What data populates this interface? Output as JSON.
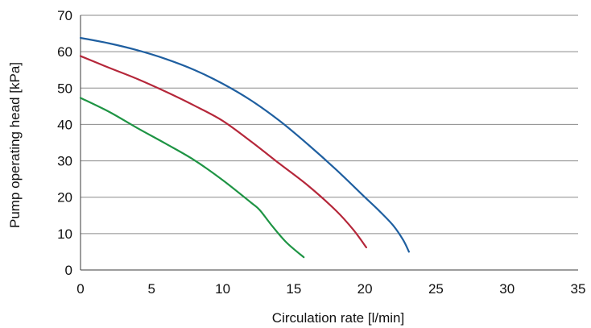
{
  "chart_data": {
    "type": "line",
    "title": "",
    "xlabel": "Circulation rate [l/min]",
    "ylabel": "Pump operating head [kPa]",
    "xlim": [
      0,
      35
    ],
    "ylim": [
      0,
      70
    ],
    "x_ticks": [
      0,
      5,
      10,
      15,
      20,
      25,
      30,
      35
    ],
    "y_ticks": [
      0,
      10,
      20,
      30,
      40,
      50,
      60,
      70
    ],
    "grid": "horizontal",
    "legend": "none",
    "series": [
      {
        "color": "#1f5fa0",
        "points": [
          [
            0,
            63.8
          ],
          [
            2,
            62.3
          ],
          [
            4,
            60.4
          ],
          [
            6,
            58.0
          ],
          [
            8,
            55.0
          ],
          [
            10,
            51.2
          ],
          [
            12,
            46.6
          ],
          [
            14,
            41.0
          ],
          [
            16,
            34.5
          ],
          [
            18,
            27.5
          ],
          [
            20,
            20.0
          ],
          [
            21,
            16.3
          ],
          [
            22,
            12.2
          ],
          [
            22.7,
            8.2
          ],
          [
            23.1,
            5.0
          ]
        ]
      },
      {
        "color": "#b5273a",
        "points": [
          [
            0,
            58.8
          ],
          [
            2,
            55.6
          ],
          [
            4,
            52.5
          ],
          [
            6,
            49.0
          ],
          [
            8,
            45.2
          ],
          [
            10,
            41.0
          ],
          [
            12,
            35.3
          ],
          [
            14,
            29.2
          ],
          [
            16,
            23.2
          ],
          [
            18,
            16.2
          ],
          [
            19.2,
            11.0
          ],
          [
            20.1,
            6.2
          ]
        ]
      },
      {
        "color": "#1e9444",
        "points": [
          [
            0,
            47.3
          ],
          [
            2,
            43.5
          ],
          [
            4,
            39.0
          ],
          [
            6,
            34.7
          ],
          [
            8,
            30.2
          ],
          [
            10,
            24.7
          ],
          [
            12,
            18.5
          ],
          [
            12.6,
            16.5
          ],
          [
            13.5,
            12.0
          ],
          [
            14.5,
            7.5
          ],
          [
            15.7,
            3.5
          ]
        ]
      }
    ]
  }
}
